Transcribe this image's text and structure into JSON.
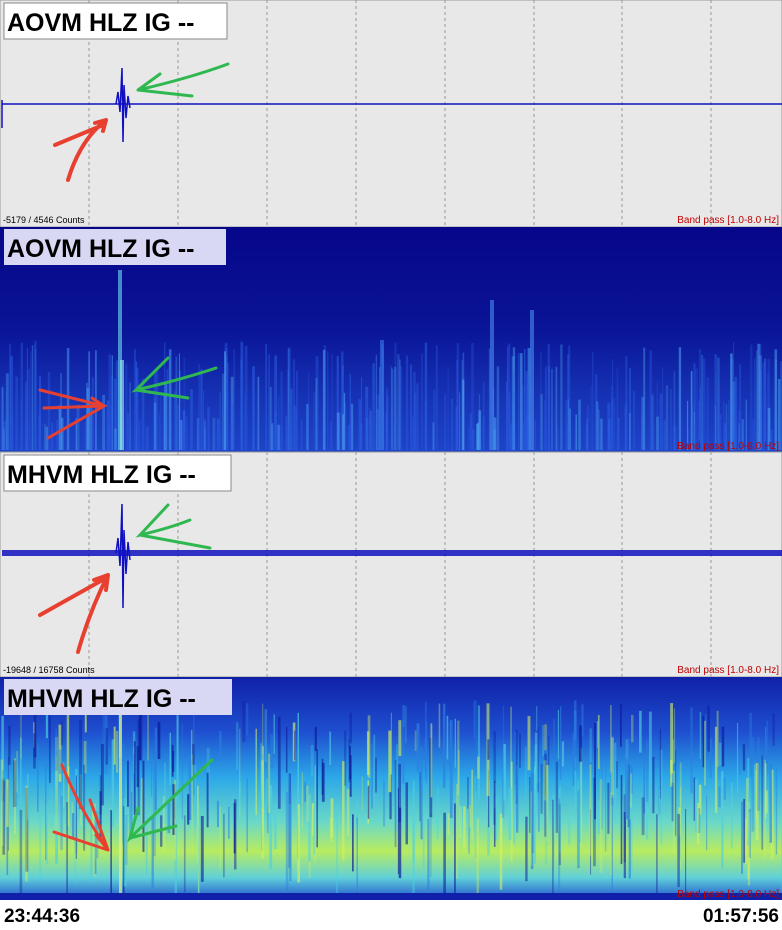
{
  "panels": [
    {
      "label": "AOVM HLZ IG --",
      "range": "-5179 / 4546 Counts",
      "filter": "Band pass [1.0-8.0 Hz]"
    },
    {
      "label": "AOVM HLZ IG --",
      "filter": "Band pass [1.0-8.0 Hz]"
    },
    {
      "label": "MHVM HLZ IG --",
      "range": "-19648 / 16758 Counts",
      "filter": "Band pass [1.0-8.0 Hz]"
    },
    {
      "label": "MHVM HLZ IG --",
      "filter": "Band pass [1.0-8.0 Hz]"
    }
  ],
  "time_axis": {
    "start": "23:44:36",
    "end": "01:57:56"
  }
}
